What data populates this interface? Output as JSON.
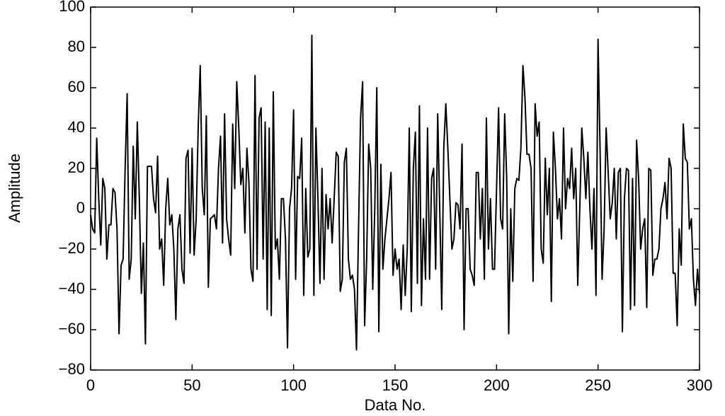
{
  "chart_data": {
    "type": "line",
    "xlabel": "Data No.",
    "ylabel": "Amplitude",
    "xlim": [
      0,
      300
    ],
    "xticks": [
      0,
      50,
      100,
      150,
      200,
      250,
      300
    ],
    "ylim": [
      -80,
      100
    ],
    "yticks": [
      -80,
      -60,
      -40,
      -20,
      0,
      20,
      40,
      60,
      80,
      100
    ],
    "grid": false,
    "x": [
      0,
      1,
      2,
      3,
      4,
      5,
      6,
      7,
      8,
      9,
      10,
      11,
      12,
      13,
      14,
      15,
      16,
      17,
      18,
      19,
      20,
      21,
      22,
      23,
      24,
      25,
      26,
      27,
      28,
      29,
      30,
      31,
      32,
      33,
      34,
      35,
      36,
      37,
      38,
      39,
      40,
      41,
      42,
      43,
      44,
      45,
      46,
      47,
      48,
      49,
      50,
      51,
      52,
      53,
      54,
      55,
      56,
      57,
      58,
      59,
      60,
      61,
      62,
      63,
      64,
      65,
      66,
      67,
      68,
      69,
      70,
      71,
      72,
      73,
      74,
      75,
      76,
      77,
      78,
      79,
      80,
      81,
      82,
      83,
      84,
      85,
      86,
      87,
      88,
      89,
      90,
      91,
      92,
      93,
      94,
      95,
      96,
      97,
      98,
      99,
      100,
      101,
      102,
      103,
      104,
      105,
      106,
      107,
      108,
      109,
      110,
      111,
      112,
      113,
      114,
      115,
      116,
      117,
      118,
      119,
      120,
      121,
      122,
      123,
      124,
      125,
      126,
      127,
      128,
      129,
      130,
      131,
      132,
      133,
      134,
      135,
      136,
      137,
      138,
      139,
      140,
      141,
      142,
      143,
      144,
      145,
      146,
      147,
      148,
      149,
      150,
      151,
      152,
      153,
      154,
      155,
      156,
      157,
      158,
      159,
      160,
      161,
      162,
      163,
      164,
      165,
      166,
      167,
      168,
      169,
      170,
      171,
      172,
      173,
      174,
      175,
      176,
      177,
      178,
      179,
      180,
      181,
      182,
      183,
      184,
      185,
      186,
      187,
      188,
      189,
      190,
      191,
      192,
      193,
      194,
      195,
      196,
      197,
      198,
      199,
      200,
      201,
      202,
      203,
      204,
      205,
      206,
      207,
      208,
      209,
      210,
      211,
      212,
      213,
      214,
      215,
      216,
      217,
      218,
      219,
      220,
      221,
      222,
      223,
      224,
      225,
      226,
      227,
      228,
      229,
      230,
      231,
      232,
      233,
      234,
      235,
      236,
      237,
      238,
      239,
      240,
      241,
      242,
      243,
      244,
      245,
      246,
      247,
      248,
      249,
      250,
      251,
      252,
      253,
      254,
      255,
      256,
      257,
      258,
      259,
      260,
      261,
      262,
      263,
      264,
      265,
      266,
      267,
      268,
      269,
      270,
      271,
      272,
      273,
      274,
      275,
      276,
      277,
      278,
      279,
      280,
      281,
      282,
      283,
      284,
      285,
      286,
      287,
      288,
      289,
      290,
      291,
      292,
      293,
      294,
      295,
      296,
      297,
      298,
      299,
      300
    ],
    "series": [
      {
        "color": "#000000",
        "values": [
          -3,
          -10,
          -12,
          35,
          5,
          -18,
          15,
          10,
          -25,
          -8,
          -8,
          10,
          8,
          -10,
          -62,
          -28,
          -25,
          20,
          57,
          -35,
          -25,
          31,
          -5,
          43,
          5,
          -42,
          -17,
          -67,
          21,
          21,
          21,
          5,
          -2,
          26,
          -20,
          -15,
          -38,
          0,
          15,
          -8,
          -3,
          -20,
          -55,
          -10,
          -3,
          -30,
          -37,
          25,
          29,
          -22,
          30,
          -23,
          -5,
          40,
          71,
          10,
          -3,
          46,
          -39,
          -5,
          -4,
          -3,
          -10,
          20,
          36,
          -17,
          47,
          -5,
          -15,
          -23,
          42,
          10,
          63,
          40,
          12,
          20,
          -12,
          30,
          13,
          -30,
          -36,
          66,
          -30,
          45,
          50,
          -25,
          43,
          -50,
          40,
          -53,
          58,
          -20,
          -15,
          -35,
          5,
          5,
          -15,
          -69,
          0,
          10,
          49,
          -35,
          16,
          15,
          35,
          -43,
          10,
          -24,
          -20,
          86,
          -43,
          40,
          5,
          -37,
          20,
          -35,
          7,
          -10,
          5,
          -17,
          5,
          28,
          26,
          -41,
          -35,
          23,
          30,
          -25,
          -35,
          -33,
          -40,
          -70,
          -10,
          45,
          63,
          -58,
          -25,
          32,
          20,
          -40,
          0,
          60,
          -61,
          22,
          -30,
          -15,
          -5,
          5,
          18,
          -33,
          -20,
          -30,
          -25,
          -50,
          -18,
          -43,
          -20,
          40,
          -51,
          20,
          38,
          -37,
          51,
          -48,
          -5,
          -35,
          40,
          -35,
          15,
          20,
          -30,
          47,
          0,
          -50,
          30,
          52,
          30,
          5,
          -20,
          -15,
          3,
          2,
          -10,
          32,
          -60,
          0,
          0,
          -30,
          -33,
          -38,
          18,
          18,
          -15,
          10,
          -35,
          45,
          -20,
          5,
          -30,
          -30,
          10,
          50,
          -5,
          -10,
          47,
          15,
          -62,
          0,
          -36,
          10,
          15,
          14,
          30,
          71,
          55,
          27,
          27,
          20,
          -36,
          52,
          36,
          43,
          -20,
          -27,
          25,
          -3,
          20,
          -46,
          38,
          20,
          -5,
          5,
          -15,
          40,
          0,
          15,
          10,
          30,
          5,
          20,
          -38,
          0,
          40,
          25,
          5,
          28,
          0,
          -20,
          10,
          -43,
          84,
          30,
          -35,
          -10,
          40,
          18,
          -5,
          3,
          20,
          -15,
          18,
          20,
          -61,
          5,
          20,
          19,
          -50,
          15,
          -48,
          34,
          15,
          -20,
          -10,
          -5,
          -49,
          20,
          19,
          -33,
          -25,
          -25,
          -20,
          0,
          5,
          13,
          -5,
          25,
          20,
          -32,
          -32,
          -58,
          -10,
          -28,
          42,
          25,
          23,
          -10,
          -5,
          -35,
          -48,
          -30,
          -42
        ]
      }
    ]
  }
}
